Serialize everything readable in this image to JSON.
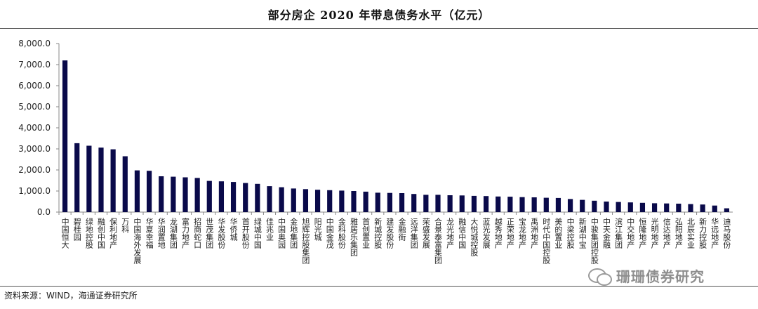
{
  "header": {
    "title": "部分房企 2020 年带息债务水平（亿元）"
  },
  "footer": {
    "source": "资料来源：WIND，海通证券研究所"
  },
  "watermark": {
    "text": "珊珊债券研究",
    "icon": "wechat-icon"
  },
  "colors": {
    "bar": "#0a0a4a",
    "axis": "#888888",
    "text": "#222222"
  },
  "chart_data": {
    "type": "bar",
    "title": "部分房企 2020 年带息债务水平（亿元）",
    "xlabel": "",
    "ylabel": "",
    "ylim": [
      0,
      8000
    ],
    "yticks": [
      "0.0",
      "1,000.0",
      "2,000.0",
      "3,000.0",
      "4,000.0",
      "5,000.0",
      "6,000.0",
      "7,000.0",
      "8,000.0"
    ],
    "grid": false,
    "legend": "none",
    "categories": [
      "中国恒大",
      "碧桂园",
      "绿地控股",
      "融创中国",
      "保利地产",
      "万科",
      "中国海外发展",
      "华夏幸福",
      "华润置地",
      "龙湖集团",
      "富力地产",
      "招商蛇口",
      "世茂集团",
      "华发股份",
      "华侨城",
      "首开股份",
      "绿城中国",
      "佳兆业",
      "中国奥园",
      "金地集团",
      "旭辉控股集团",
      "阳光城",
      "中国金茂",
      "金科股份",
      "雅居乐集团",
      "首创置业",
      "新城控股",
      "建发股份",
      "金融街",
      "远洋集团",
      "荣盛发展",
      "合景泰富集团",
      "龙光地产",
      "融信中国",
      "大悦城控股",
      "蓝光发展",
      "越秀地产",
      "正荣地产",
      "宝龙地产",
      "禹洲地产",
      "时代中国控股",
      "美的置业",
      "中梁控股",
      "新湖中宝",
      "中骏集团控股",
      "中天金融",
      "滨江集团",
      "中交地产",
      "恒隆地产",
      "光明地产",
      "信达地产",
      "弘阳地产",
      "北辰实业",
      "新力控股",
      "华远地产",
      "迪马股份"
    ],
    "values": [
      7200,
      3270,
      3150,
      3060,
      2980,
      2650,
      1980,
      1960,
      1700,
      1680,
      1650,
      1620,
      1480,
      1460,
      1430,
      1380,
      1340,
      1230,
      1180,
      1120,
      1090,
      1060,
      1040,
      1020,
      1000,
      970,
      920,
      910,
      900,
      860,
      820,
      820,
      800,
      790,
      770,
      760,
      740,
      730,
      710,
      700,
      680,
      670,
      620,
      580,
      540,
      500,
      480,
      460,
      440,
      420,
      410,
      400,
      380,
      360,
      310,
      180
    ]
  }
}
